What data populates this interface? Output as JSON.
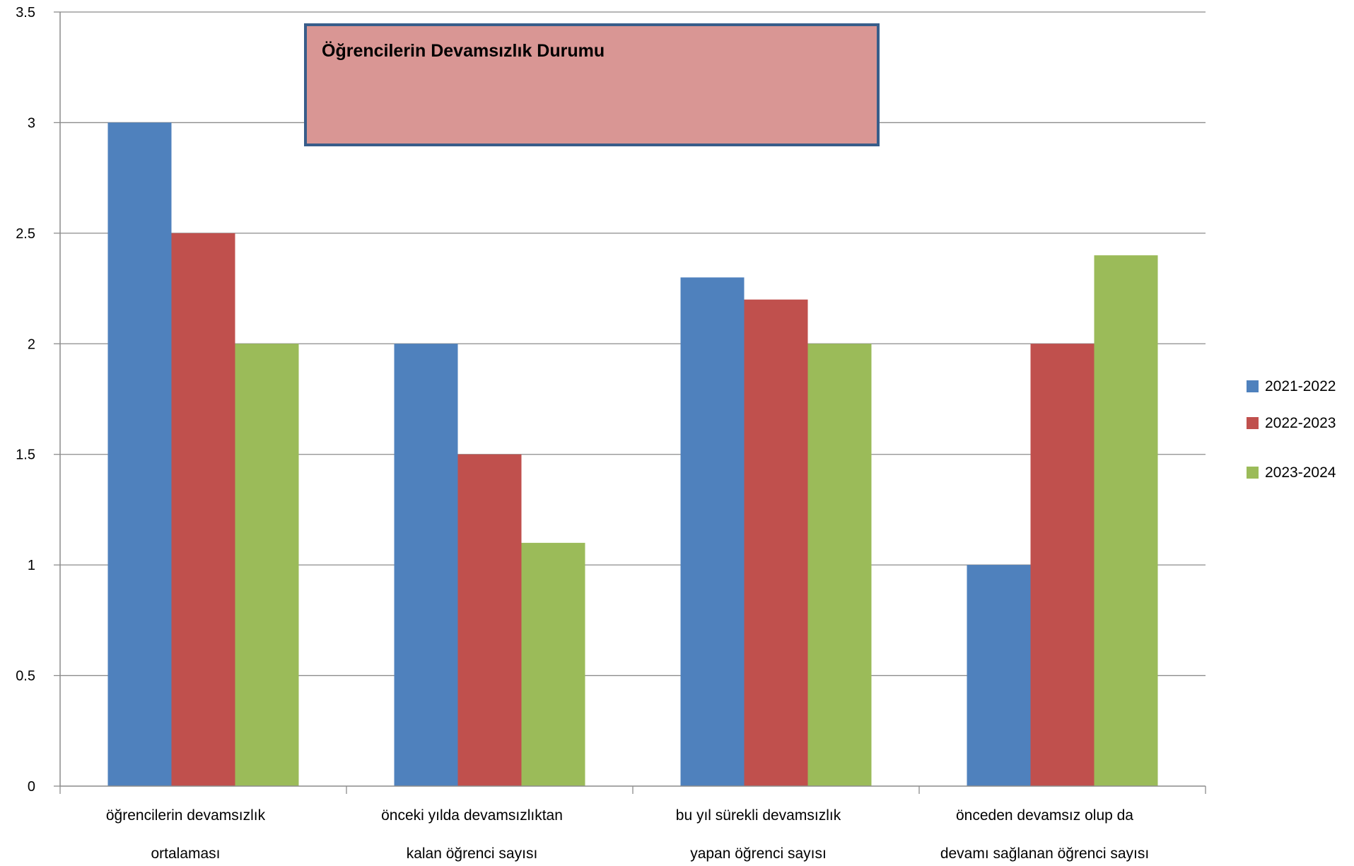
{
  "chart_data": {
    "type": "bar",
    "title": "Öğrencilerin Devamsızlık Durumu",
    "categories": [
      [
        "öğrencilerin devamsızlık",
        "ortalaması"
      ],
      [
        "önceki yılda devamsızlıktan",
        "kalan öğrenci sayısı"
      ],
      [
        "bu yıl sürekli devamsızlık",
        "yapan öğrenci sayısı"
      ],
      [
        "önceden devamsız olup da",
        "devamı sağlanan öğrenci sayısı"
      ]
    ],
    "series": [
      {
        "name": "2021-2022",
        "color": "#4F81BD",
        "values": [
          3,
          2,
          2.3,
          1
        ]
      },
      {
        "name": "2022-2023",
        "color": "#C0504D",
        "values": [
          2.5,
          1.5,
          2.2,
          2
        ]
      },
      {
        "name": "2023-2024",
        "color": "#9BBB59",
        "values": [
          2,
          1.1,
          2,
          2.4
        ]
      }
    ],
    "ylim": [
      0,
      3.5
    ],
    "yticks": [
      "0",
      "0.5",
      "1",
      "1.5",
      "2",
      "2.5",
      "3",
      "3.5"
    ],
    "grid": true,
    "legend_position": "right",
    "title_box_fill": "#D99694",
    "title_box_border": "#385D8A",
    "gridline_color": "#8C8C8C"
  }
}
